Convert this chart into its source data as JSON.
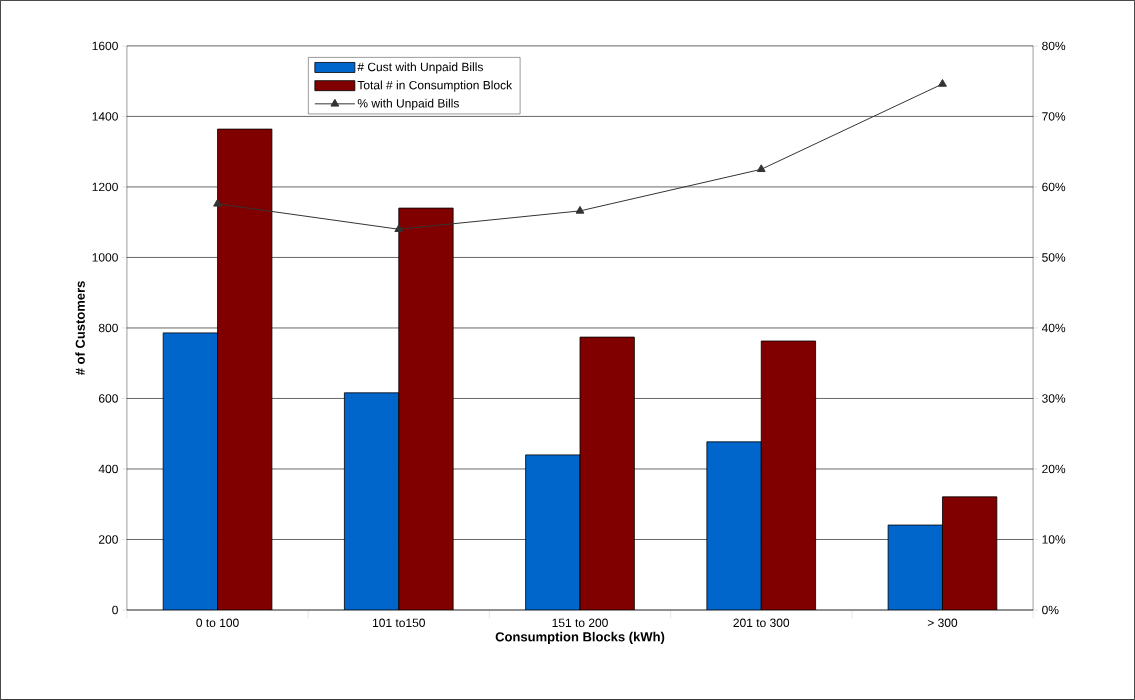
{
  "chart_data": {
    "type": "bar",
    "xlabel": "Consumption Blocks (kWh)",
    "ylabel": "# of Customers",
    "categories": [
      "0 to 100",
      "101 to150",
      "151 to 200",
      "201 to 300",
      "> 300"
    ],
    "series": [
      {
        "name": "# Cust with Unpaid Bills",
        "color": "#0066cc",
        "values": [
          786,
          616,
          440,
          477,
          241
        ]
      },
      {
        "name": "Total # in Consumption Block",
        "color": "#800000",
        "values": [
          1364,
          1140,
          774,
          763,
          321
        ]
      },
      {
        "name": "% with Unpaid Bills",
        "type": "line",
        "axis": "y2",
        "color": "#333333",
        "values": [
          57.6,
          54.0,
          56.6,
          62.5,
          74.6
        ]
      }
    ],
    "marker": "triangle",
    "line_style": "solid",
    "ylim": [
      0,
      1600
    ],
    "yticks": [
      0,
      200,
      400,
      600,
      800,
      1000,
      1200,
      1400,
      1600
    ],
    "y2lim": [
      0,
      80
    ],
    "y2ticks": [
      {
        "value": 0,
        "label": "0%"
      },
      {
        "value": 10,
        "label": "10%"
      },
      {
        "value": 20,
        "label": "20%"
      },
      {
        "value": 30,
        "label": "30%"
      },
      {
        "value": 40,
        "label": "40%"
      },
      {
        "value": 50,
        "label": "50%"
      },
      {
        "value": 60,
        "label": "60%"
      },
      {
        "value": 70,
        "label": "70%"
      },
      {
        "value": 80,
        "label": "80%"
      }
    ],
    "grid": "y",
    "legend": "top"
  }
}
